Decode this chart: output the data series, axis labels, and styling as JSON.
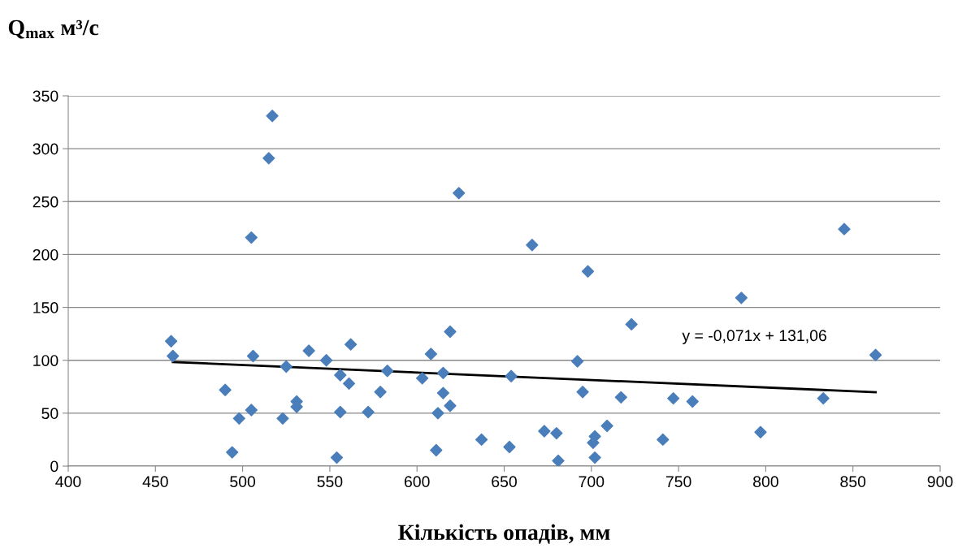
{
  "chart_data": {
    "type": "scatter",
    "ylabel": "Q$_{max}$ м³/с",
    "xlabel": "Кількість опадів, мм",
    "xlim": [
      400,
      900
    ],
    "xticks": [
      400,
      450,
      500,
      550,
      600,
      650,
      700,
      750,
      800,
      850,
      900
    ],
    "ylim": [
      0,
      350
    ],
    "yticks": [
      0,
      50,
      100,
      150,
      200,
      250,
      300,
      350
    ],
    "grid": "y",
    "marker": "diamond",
    "series": [
      {
        "color": "#4a7ebb",
        "x": [
          459,
          460,
          490,
          494,
          498,
          505,
          506,
          505,
          517,
          515,
          523,
          525,
          531,
          531,
          538,
          548,
          554,
          556,
          556,
          561,
          562,
          572,
          579,
          583,
          603,
          608,
          611,
          612,
          615,
          615,
          619,
          619,
          624,
          637,
          653,
          654,
          666,
          673,
          680,
          681,
          692,
          695,
          698,
          702,
          701,
          702,
          709,
          717,
          723,
          741,
          747,
          758,
          786,
          797,
          833,
          845,
          863
        ],
        "values": [
          118,
          104,
          72,
          13,
          45,
          216,
          104,
          53,
          331,
          291,
          45,
          94,
          61,
          56,
          109,
          100,
          8,
          86,
          51,
          78,
          115,
          51,
          70,
          90,
          83,
          106,
          15,
          50,
          88,
          69,
          127,
          57,
          258,
          25,
          18,
          85,
          209,
          33,
          31,
          5,
          99,
          70,
          184,
          28,
          22,
          8,
          38,
          65,
          134,
          25,
          64,
          61,
          159,
          32,
          64,
          224,
          105
        ]
      },
      {
        "type": "line",
        "color": "#000000",
        "marker": "none",
        "x": [
          460,
          863
        ],
        "values": [
          98.4,
          69.8
        ]
      }
    ],
    "annotations": [
      "y = -0,071x + 131,06"
    ]
  }
}
